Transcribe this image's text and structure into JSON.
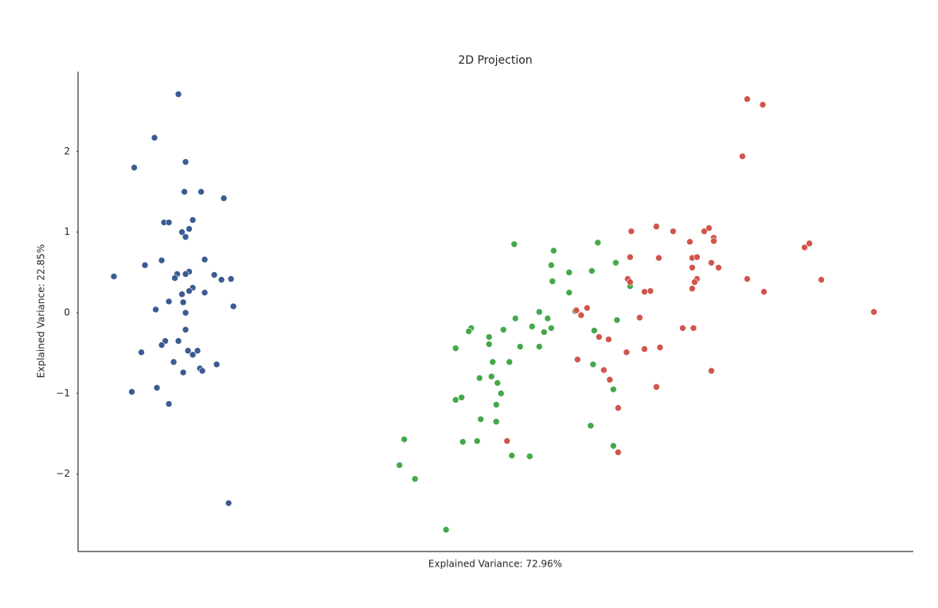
{
  "chart_data": {
    "type": "scatter",
    "title": "2D Projection",
    "x_label": "Explained Variance: 72.96%",
    "y_label": "Explained Variance: 22.85%",
    "xlim": [
      -3.21,
      3.78
    ],
    "ylim": [
      -2.96,
      2.99
    ],
    "yticks": [
      {
        "value": -2,
        "label": "−2"
      },
      {
        "value": -1,
        "label": "−1"
      },
      0,
      1,
      2
    ],
    "series": [
      {
        "color": "#3b5b92",
        "x": [
          -2.37,
          -2.57,
          -2.74,
          -2.31,
          -2.32,
          -2.18,
          -1.99,
          -2.49,
          -2.45,
          -2.25,
          -2.28,
          -2.34,
          -2.31,
          -2.51,
          -2.15,
          -2.65,
          -2.91,
          -2.38,
          -2.4,
          -2.28,
          -2.31,
          -2.07,
          -2.01,
          -1.93,
          -2.25,
          -2.28,
          -2.15,
          -2.34,
          -2.45,
          -2.33,
          -1.91,
          -2.56,
          -2.31,
          -2.31,
          -2.37,
          -2.48,
          -2.51,
          -2.68,
          -2.29,
          -2.21,
          -2.25,
          -2.41,
          -2.05,
          -2.19,
          -2.17,
          -2.33,
          -2.55,
          -2.76,
          -2.45,
          -1.95
        ],
        "values": [
          2.71,
          2.17,
          1.8,
          1.87,
          1.5,
          1.5,
          1.42,
          1.12,
          1.12,
          1.15,
          1.04,
          1.0,
          0.94,
          0.65,
          0.66,
          0.59,
          0.45,
          0.48,
          0.43,
          0.51,
          0.48,
          0.47,
          0.41,
          0.42,
          0.31,
          0.27,
          0.25,
          0.23,
          0.14,
          0.13,
          0.08,
          0.04,
          0.0,
          -0.21,
          -0.35,
          -0.35,
          -0.4,
          -0.49,
          -0.47,
          -0.47,
          -0.52,
          -0.61,
          -0.64,
          -0.69,
          -0.72,
          -0.74,
          -0.93,
          -0.98,
          -1.13,
          -2.36
        ]
      },
      {
        "color": "#44a84a",
        "x": [
          0.44,
          1.14,
          0.77,
          0.75,
          1.29,
          0.9,
          1.09,
          0.76,
          1.41,
          0.9,
          0.65,
          0.95,
          0.45,
          0.72,
          1.3,
          0.59,
          0.75,
          0.69,
          0.08,
          0.06,
          0.35,
          1.11,
          0.23,
          0.23,
          -0.05,
          0.49,
          0.65,
          0.26,
          0.4,
          1.1,
          0.15,
          0.25,
          0.3,
          1.27,
          0.33,
          0.0,
          -0.05,
          0.29,
          0.16,
          0.29,
          1.08,
          -0.48,
          0.01,
          0.13,
          1.27,
          0.42,
          0.57,
          -0.52,
          -0.39,
          -0.13
        ],
        "values": [
          0.85,
          0.87,
          0.77,
          0.59,
          0.62,
          0.5,
          0.52,
          0.39,
          0.33,
          0.25,
          0.01,
          0.02,
          -0.07,
          -0.07,
          -0.09,
          -0.17,
          -0.19,
          -0.24,
          -0.19,
          -0.23,
          -0.21,
          -0.22,
          -0.3,
          -0.39,
          -0.44,
          -0.42,
          -0.42,
          -0.61,
          -0.61,
          -0.64,
          -0.81,
          -0.79,
          -0.87,
          -0.95,
          -1.0,
          -1.05,
          -1.08,
          -1.14,
          -1.32,
          -1.35,
          -1.4,
          -1.57,
          -1.6,
          -1.59,
          -1.65,
          -1.77,
          -1.78,
          -1.89,
          -2.06,
          -2.69
        ]
      },
      {
        "color": "#d0554b",
        "x": [
          2.39,
          2.52,
          2.35,
          1.63,
          1.42,
          1.77,
          2.07,
          2.03,
          2.11,
          2.11,
          1.91,
          2.91,
          2.87,
          1.41,
          1.65,
          1.93,
          1.97,
          2.09,
          1.93,
          2.15,
          1.39,
          1.97,
          1.95,
          2.39,
          3.01,
          1.41,
          1.93,
          1.58,
          1.53,
          2.53,
          1.05,
          0.96,
          1.0,
          3.45,
          1.49,
          1.85,
          1.94,
          1.15,
          1.23,
          1.66,
          1.53,
          1.38,
          0.97,
          1.19,
          2.09,
          1.24,
          1.63,
          1.31,
          0.38,
          1.31
        ],
        "values": [
          2.65,
          2.58,
          1.94,
          1.07,
          1.01,
          1.01,
          1.05,
          1.01,
          0.93,
          0.89,
          0.88,
          0.86,
          0.81,
          0.69,
          0.68,
          0.68,
          0.69,
          0.62,
          0.56,
          0.56,
          0.42,
          0.42,
          0.38,
          0.42,
          0.41,
          0.38,
          0.3,
          0.27,
          0.26,
          0.26,
          0.06,
          0.03,
          -0.03,
          0.01,
          -0.06,
          -0.19,
          -0.19,
          -0.3,
          -0.33,
          -0.43,
          -0.45,
          -0.49,
          -0.58,
          -0.71,
          -0.72,
          -0.83,
          -0.92,
          -1.18,
          -1.59,
          -1.73
        ]
      }
    ]
  }
}
